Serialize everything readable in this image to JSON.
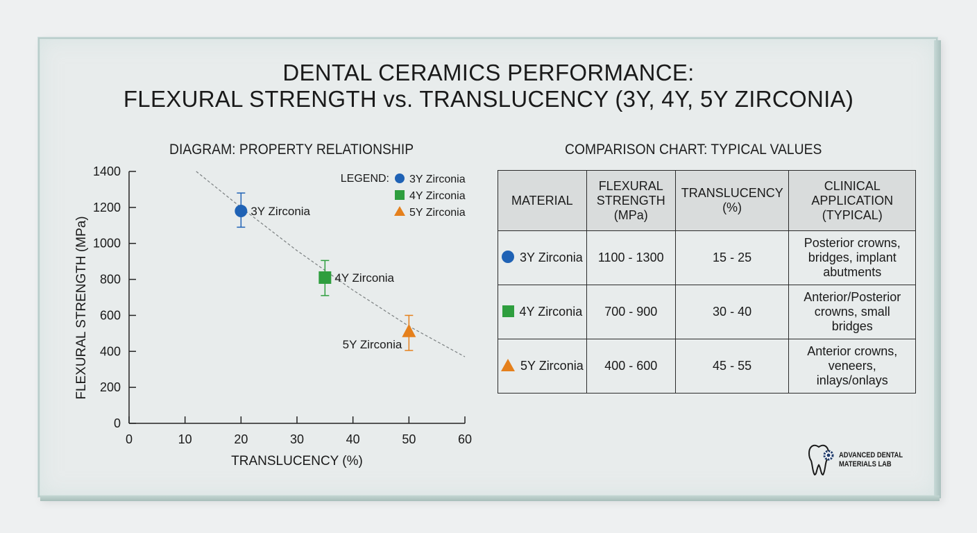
{
  "title_line1": "DENTAL CERAMICS PERFORMANCE:",
  "title_line2": "FLEXURAL STRENGTH vs. TRANSLUCENCY (3Y, 4Y, 5Y ZIRCONIA)",
  "left_subtitle": "DIAGRAM: PROPERTY RELATIONSHIP",
  "right_subtitle": "COMPARISON CHART: TYPICAL VALUES",
  "colors": {
    "3y": "#1f62b5",
    "4y": "#2e9e3e",
    "5y": "#e5801c"
  },
  "chart_data": [
    {
      "type": "scatter",
      "xlabel": "TRANSLUCENCY (%)",
      "ylabel": "FLEXURAL STRENGTH (MPa)",
      "xlim": [
        0,
        60
      ],
      "ylim": [
        0,
        1400
      ],
      "xticks": [
        0,
        10,
        20,
        30,
        40,
        50,
        60
      ],
      "yticks": [
        0,
        200,
        400,
        600,
        800,
        1000,
        1200,
        1400
      ],
      "legend": {
        "title": "LEGEND:",
        "placement": "top-right",
        "entries": [
          "3Y Zirconia",
          "4Y Zirconia",
          "5Y Zirconia"
        ]
      },
      "series": [
        {
          "name": "3Y Zirconia",
          "marker": "circle",
          "color": "#1f62b5",
          "x": 20,
          "y": 1180,
          "err_low": 1090,
          "err_high": 1280
        },
        {
          "name": "4Y Zirconia",
          "marker": "square",
          "color": "#2e9e3e",
          "x": 35,
          "y": 810,
          "err_low": 710,
          "err_high": 905
        },
        {
          "name": "5Y Zirconia",
          "marker": "triangle",
          "color": "#e5801c",
          "x": 50,
          "y": 510,
          "err_low": 405,
          "err_high": 600
        }
      ],
      "trend_line": {
        "style": "dashed",
        "x": [
          12,
          20,
          30,
          40,
          50,
          60
        ],
        "y": [
          1400,
          1200,
          960,
          740,
          540,
          370
        ]
      }
    },
    {
      "type": "table",
      "headers": [
        "MATERIAL",
        "FLEXURAL STRENGTH (MPa)",
        "TRANSLUCENCY (%)",
        "CLINICAL APPLICATION (TYPICAL)"
      ],
      "rows": [
        {
          "material": "3Y Zirconia",
          "marker": "circle",
          "strength": "1100 - 1300",
          "translucency": "15 - 25",
          "application": "Posterior crowns, bridges, implant abutments"
        },
        {
          "material": "4Y Zirconia",
          "marker": "square",
          "strength": "700 - 900",
          "translucency": "30 - 40",
          "application": "Anterior/Posterior crowns, small bridges"
        },
        {
          "material": "5Y Zirconia",
          "marker": "triangle",
          "strength": "400 - 600",
          "translucency": "45 - 55",
          "application": "Anterior crowns, veneers, inlays/onlays"
        }
      ]
    }
  ],
  "logo": {
    "line1": "ADVANCED DENTAL",
    "line2": "MATERIALS LAB",
    "icon": "tooth-gear-icon"
  }
}
